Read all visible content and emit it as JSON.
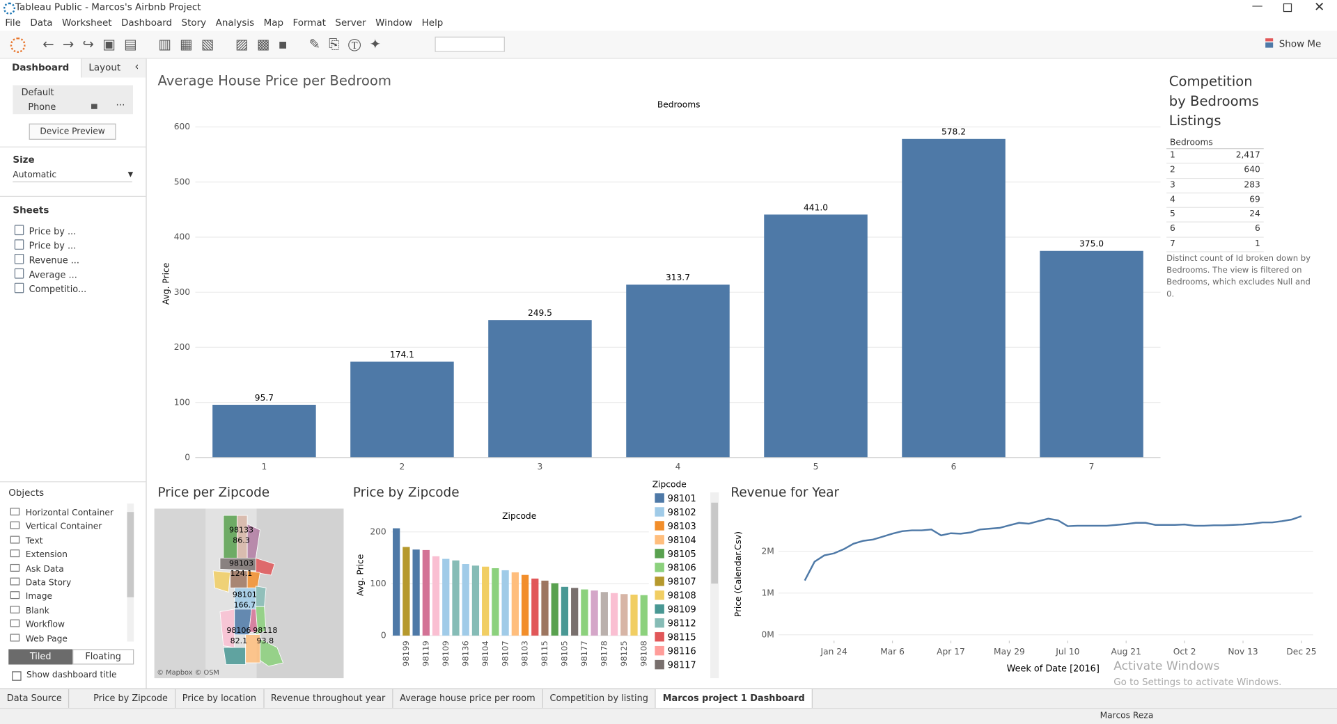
{
  "window": {
    "title": "Tableau Public - Marcos's Airbnb Project"
  },
  "menu": [
    "File",
    "Data",
    "Worksheet",
    "Dashboard",
    "Story",
    "Analysis",
    "Map",
    "Format",
    "Server",
    "Window",
    "Help"
  ],
  "toolbar": {
    "show_me": "Show Me"
  },
  "sidebar": {
    "tabs": [
      "Dashboard",
      "Layout"
    ],
    "devices": [
      "Default",
      "Phone"
    ],
    "device_preview": "Device Preview",
    "size_label": "Size",
    "size_value": "Automatic",
    "sheets_label": "Sheets",
    "sheets": [
      "Price by ...",
      "Price by ...",
      "Revenue ...",
      "Average ...",
      "Competitio..."
    ],
    "objects_label": "Objects",
    "objects": [
      "Horizontal Container",
      "Vertical Container",
      "Text",
      "Extension",
      "Ask Data",
      "Data Story",
      "Image",
      "Blank",
      "Workflow",
      "Web Page"
    ],
    "tiled": "Tiled",
    "floating": "Floating",
    "show_title": "Show dashboard title"
  },
  "bedroom_chart": {
    "type": "bar",
    "title": "Average House Price per Bedroom",
    "x_axis_title": "Bedrooms",
    "y_axis_title": "Avg. Price",
    "categories": [
      "1",
      "2",
      "3",
      "4",
      "5",
      "6",
      "7"
    ],
    "values": [
      95.7,
      174.1,
      249.5,
      313.7,
      441.0,
      578.2,
      375.0
    ],
    "value_labels": [
      "95.7",
      "174.1",
      "249.5",
      "313.7",
      "441.0",
      "578.2",
      "375.0"
    ],
    "color": "#4e79a7",
    "ylim": [
      0,
      600
    ],
    "yticks": [
      0,
      100,
      200,
      300,
      400,
      500,
      600
    ],
    "grid": true
  },
  "listing_table": {
    "title": "Competition by Bedrooms Listings",
    "header": "Bedrooms",
    "rows": [
      [
        "1",
        "2,417"
      ],
      [
        "2",
        "640"
      ],
      [
        "3",
        "283"
      ],
      [
        "4",
        "69"
      ],
      [
        "5",
        "24"
      ],
      [
        "6",
        "6"
      ],
      [
        "7",
        "1"
      ]
    ],
    "note": "Distinct count of Id broken down by Bedrooms. The view is filtered on Bedrooms, which excludes Null and 0."
  },
  "zip_map": {
    "title": "Price per Zipcode",
    "labels": [
      [
        "98133",
        "86.3"
      ],
      [
        "98103",
        "124.1"
      ],
      [
        "98101",
        "166.7"
      ],
      [
        "98106",
        "82.1"
      ],
      [
        "98118",
        "93.8"
      ]
    ],
    "attribution": "© Mapbox © OSM"
  },
  "zip_chart": {
    "type": "bar",
    "title": "Price by Zipcode",
    "x_axis_title": "Zipcode",
    "y_axis_title": "Avg. Price",
    "categories": [
      null,
      "98199",
      null,
      "98119",
      null,
      "98109",
      null,
      "98136",
      null,
      "98104",
      null,
      "98107",
      null,
      "98103",
      null,
      "98115",
      null,
      "98105",
      null,
      "98177",
      null,
      "98178",
      null,
      "98125",
      null,
      "98108"
    ],
    "values": [
      207,
      171,
      166,
      165,
      153,
      148,
      145,
      138,
      135,
      133,
      130,
      126,
      122,
      117,
      110,
      106,
      101,
      94,
      92,
      89,
      87,
      84,
      82,
      80,
      79,
      78
    ],
    "colors": [
      "#4e79a7",
      "#b6992d",
      "#4e79a7",
      "#d37295",
      "#fabfd2",
      "#a0cbe8",
      "#86bcb6",
      "#a0cbe8",
      "#86bcb6",
      "#f1ce63",
      "#8cd17d",
      "#a0cbe8",
      "#ffbe7d",
      "#f28e2b",
      "#e15759",
      "#9d7660",
      "#59a14f",
      "#499894",
      "#79706e",
      "#8cd17d",
      "#d4a6c8",
      "#bab0ac",
      "#fabfd2",
      "#d7b5a6",
      "#f1ce63",
      "#8cd17d"
    ],
    "ylim": [
      0,
      240
    ],
    "yticks": [
      0,
      100,
      200
    ],
    "grid": true,
    "legend": {
      "title": "Zipcode",
      "items": [
        {
          "name": "98101",
          "color": "#4e79a7"
        },
        {
          "name": "98102",
          "color": "#a0cbe8"
        },
        {
          "name": "98103",
          "color": "#f28e2b"
        },
        {
          "name": "98104",
          "color": "#ffbe7d"
        },
        {
          "name": "98105",
          "color": "#59a14f"
        },
        {
          "name": "98106",
          "color": "#8cd17d"
        },
        {
          "name": "98107",
          "color": "#b6992d"
        },
        {
          "name": "98108",
          "color": "#f1ce63"
        },
        {
          "name": "98109",
          "color": "#499894"
        },
        {
          "name": "98112",
          "color": "#86bcb6"
        },
        {
          "name": "98115",
          "color": "#e15759"
        },
        {
          "name": "98116",
          "color": "#ff9d9a"
        },
        {
          "name": "98117",
          "color": "#79706e"
        }
      ]
    }
  },
  "revenue_chart": {
    "type": "line",
    "title": "Revenue for Year",
    "x_axis_title": "Week of Date [2016]",
    "y_axis_title": "Price (Calendar.Csv)",
    "color": "#4e79a7",
    "x": [
      1,
      2,
      3,
      4,
      5,
      6,
      7,
      8,
      9,
      10,
      11,
      12,
      13,
      14,
      15,
      16,
      17,
      18,
      19,
      20,
      21,
      22,
      23,
      24,
      25,
      26,
      27,
      28,
      29,
      30,
      31,
      32,
      33,
      34,
      35,
      36,
      37,
      38,
      39,
      40,
      41,
      42,
      43,
      44,
      45,
      46,
      47,
      48,
      49,
      50,
      51,
      52
    ],
    "values": [
      1300000,
      1750000,
      1900000,
      1950000,
      2050000,
      2180000,
      2250000,
      2280000,
      2350000,
      2420000,
      2480000,
      2500000,
      2500000,
      2520000,
      2380000,
      2430000,
      2420000,
      2450000,
      2520000,
      2540000,
      2560000,
      2620000,
      2680000,
      2660000,
      2720000,
      2780000,
      2740000,
      2600000,
      2610000,
      2610000,
      2610000,
      2610000,
      2630000,
      2650000,
      2680000,
      2680000,
      2630000,
      2630000,
      2630000,
      2640000,
      2610000,
      2610000,
      2620000,
      2620000,
      2630000,
      2640000,
      2660000,
      2690000,
      2690000,
      2720000,
      2760000,
      2840000
    ],
    "xlim": [
      -1.7,
      53.2
    ],
    "xticks": [
      {
        "value": 4,
        "label": "Jan 24"
      },
      {
        "value": 10,
        "label": "Mar 6"
      },
      {
        "value": 16,
        "label": "Apr 17"
      },
      {
        "value": 22,
        "label": "May 29"
      },
      {
        "value": 28,
        "label": "Jul 10"
      },
      {
        "value": 34,
        "label": "Aug 21"
      },
      {
        "value": 40,
        "label": "Oct 2"
      },
      {
        "value": 46,
        "label": "Nov 13"
      },
      {
        "value": 52,
        "label": "Dec 25"
      }
    ],
    "ylim": [
      -140000,
      3020000
    ],
    "yticks": [
      {
        "value": 0,
        "label": "0M"
      },
      {
        "value": 1000000,
        "label": "1M"
      },
      {
        "value": 2000000,
        "label": "2M"
      }
    ],
    "grid": true
  },
  "bottom_tabs": [
    "Data Source",
    "Price by Zipcode",
    "Price by location",
    "Revenue throughout year",
    "Average house price per room",
    "Competition by listing",
    "Marcos project 1 Dashboard"
  ],
  "status": {
    "user": "Marcos Reza"
  },
  "watermark": {
    "title": "Activate Windows",
    "subtitle": "Go to Settings to activate Windows."
  }
}
